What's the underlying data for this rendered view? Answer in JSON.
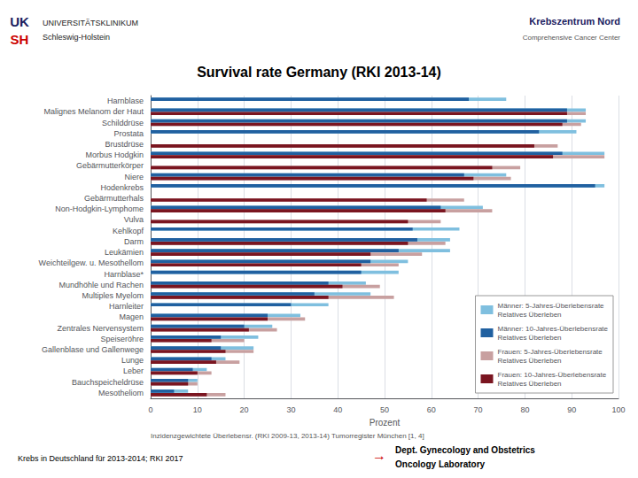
{
  "chart_data": {
    "type": "bar",
    "orientation": "horizontal",
    "title": "Survival rate Germany (RKI 2013-14)",
    "xlabel": "Prozent",
    "categories": [
      "Harnblase",
      "Malignes Melanom der Haut",
      "Schilddrüse",
      "Prostata",
      "Brustdrüse",
      "Morbus Hodgkin",
      "Gebärmutterkörper",
      "Niere",
      "Hodenkrebs",
      "Gebärmutterhals",
      "Non-Hodgkin-Lymphome",
      "Vulva",
      "Kehlkopf",
      "Darm",
      "Leukämien",
      "Weichteilgew. u. Mesothellom",
      "Harnblase*",
      "Mundhöhle und Rachen",
      "Multiples Myelom",
      "Harnleiter",
      "Magen",
      "Zentrales Nervensystem",
      "Speiseröhre",
      "Gallenblase und Gallenwege",
      "Lunge",
      "Leber",
      "Bauchspeicheldrüse",
      "Mesotheliom"
    ],
    "series": [
      {
        "name": "Männer: 5-Jahres-Überlebensrate\nRelatives Überleben",
        "color": "#7fbfdf",
        "values": [
          76,
          93,
          93,
          91,
          null,
          97,
          null,
          76,
          97,
          null,
          71,
          null,
          66,
          64,
          64,
          55,
          53,
          46,
          47,
          38,
          32,
          26,
          23,
          22,
          16,
          12,
          10,
          8
        ]
      },
      {
        "name": "Männer: 10-Jahres-Überlebensrate\nRelatives Überleben",
        "color": "#2060a0",
        "values": [
          68,
          89,
          89,
          83,
          null,
          88,
          null,
          67,
          95,
          null,
          62,
          null,
          56,
          57,
          53,
          47,
          45,
          38,
          35,
          30,
          25,
          20,
          15,
          15,
          13,
          9,
          8,
          5
        ]
      },
      {
        "name": "Frauen: 5-Jahres-Überlebensrate\nRelatives Überleben",
        "color": "#c8a0a0",
        "values": [
          null,
          93,
          92,
          null,
          87,
          97,
          79,
          77,
          null,
          67,
          73,
          62,
          null,
          63,
          58,
          53,
          null,
          49,
          52,
          null,
          33,
          27,
          20,
          22,
          19,
          13,
          10,
          16
        ]
      },
      {
        "name": "Frauen: 10-Jahres-Überlebensrate\nRelatives Überleben",
        "color": "#7a1520",
        "values": [
          null,
          89,
          88,
          null,
          82,
          86,
          73,
          69,
          null,
          59,
          63,
          55,
          null,
          55,
          47,
          45,
          null,
          41,
          38,
          null,
          25,
          21,
          13,
          16,
          14,
          10,
          8,
          12
        ]
      }
    ],
    "xlim": [
      0,
      100
    ],
    "xticks": [
      0,
      10,
      20,
      30,
      40,
      50,
      60,
      70,
      80,
      90,
      100
    ],
    "grid": true,
    "legend": "lower right",
    "annotations": [
      "UK",
      "SH",
      "UNIVERSITÄTSKLINIKUM",
      "Schleswig-Holstein",
      "Krebszentrum Nord",
      "Comprehensive Cancer Center",
      "Inzidenzgewichtete Überlebensr. (RKI 2009-13, 2013-14) Tumorregister München [1, 4]",
      "Krebs in Deutschland für 2013-2014; RKI 2017",
      "→",
      "Dept. Gynecology and Obstetrics",
      "Oncology Laboratory"
    ]
  }
}
